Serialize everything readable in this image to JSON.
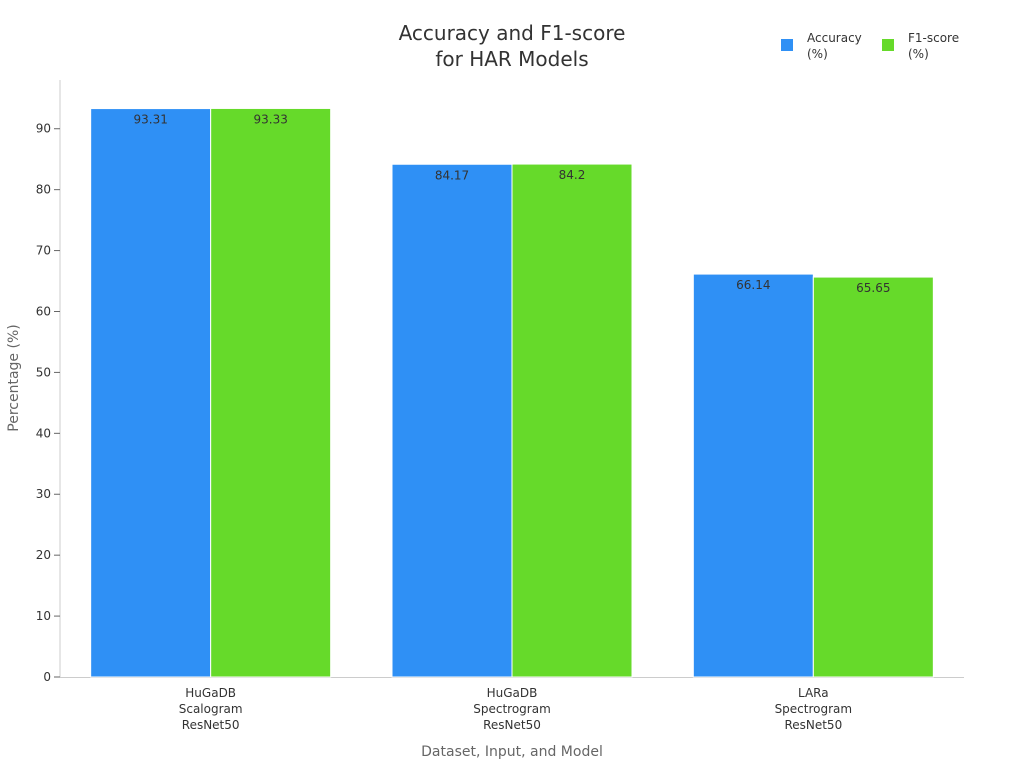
{
  "chart_data": {
    "type": "bar",
    "title": [
      "Accuracy and F1-score",
      "for HAR Models"
    ],
    "xlabel": "Dataset, Input, and Model",
    "ylabel": "Percentage (%)",
    "categories": [
      [
        "HuGaDB",
        "Scalogram",
        "ResNet50"
      ],
      [
        "HuGaDB",
        "Spectrogram",
        "ResNet50"
      ],
      [
        "LARa",
        "Spectrogram",
        "ResNet50"
      ]
    ],
    "series": [
      {
        "name": [
          "Accuracy",
          "(%)"
        ],
        "color": "#2f90f5",
        "values": [
          93.31,
          84.17,
          66.14
        ]
      },
      {
        "name": [
          "F1-score",
          "(%)"
        ],
        "color": "#66da2a",
        "values": [
          93.33,
          84.2,
          65.65
        ]
      }
    ],
    "ylim": [
      0,
      98
    ],
    "yticks": [
      0,
      10,
      20,
      30,
      40,
      50,
      60,
      70,
      80,
      90
    ],
    "grid": false,
    "legend_position": "top-right"
  }
}
